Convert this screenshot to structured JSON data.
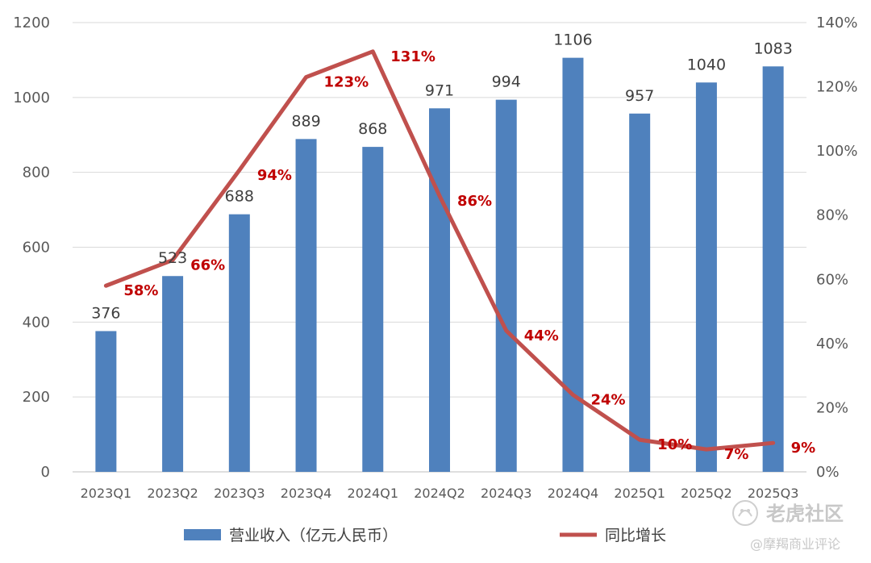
{
  "chart_data": {
    "type": "bar+line",
    "categories": [
      "2023Q1",
      "2023Q2",
      "2023Q3",
      "2023Q4",
      "2024Q1",
      "2024Q2",
      "2024Q3",
      "2024Q4",
      "2025Q1",
      "2025Q2",
      "2025Q3"
    ],
    "series": [
      {
        "name": "营业收入（亿元人民币）",
        "type": "bar",
        "axis": "left",
        "color": "#4f81bd",
        "values": [
          376,
          523,
          688,
          889,
          868,
          971,
          994,
          1106,
          957,
          1040,
          1083
        ]
      },
      {
        "name": "同比增长",
        "type": "line",
        "axis": "right",
        "color": "#c0504d",
        "values": [
          58,
          66,
          94,
          123,
          131,
          86,
          44,
          24,
          10,
          7,
          9
        ],
        "labels": [
          "58%",
          "66%",
          "94%",
          "123%",
          "131%",
          "86%",
          "44%",
          "24%",
          "10%",
          "7%",
          "9%"
        ]
      }
    ],
    "y_left": {
      "min": 0,
      "max": 1200,
      "ticks": [
        "0",
        "200",
        "400",
        "600",
        "800",
        "1000",
        "1200"
      ]
    },
    "y_right": {
      "min": 0,
      "max": 140,
      "ticks": [
        "0%",
        "20%",
        "40%",
        "60%",
        "80%",
        "100%",
        "120%",
        "140%"
      ]
    },
    "grid": true,
    "legend_position": "bottom",
    "label_color": "#c00000"
  },
  "watermark": {
    "brand": "老虎社区",
    "sub": "@摩羯商业评论",
    "icon": "tiger-community-logo-icon"
  }
}
